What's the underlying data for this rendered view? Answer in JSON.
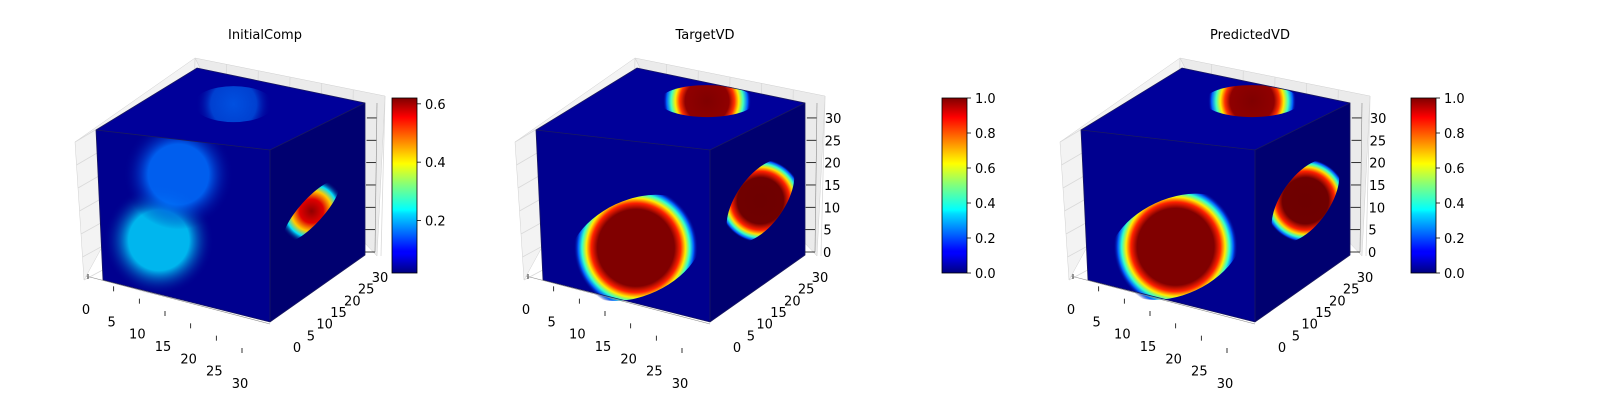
{
  "chart_data": [
    {
      "type": "heatmap",
      "title": "InitialComp",
      "colormap": "jet",
      "grid": true,
      "legend_placement": "right",
      "x_ticks": [
        "0",
        "5",
        "10",
        "15",
        "20",
        "25",
        "30"
      ],
      "y_ticks": [
        "0",
        "5",
        "10",
        "15",
        "20",
        "25",
        "30"
      ],
      "z_ticks": [],
      "z_range": [
        0,
        32
      ],
      "colorbar_range": [
        0.02,
        0.62
      ],
      "colorbar_ticks": [
        "0.2",
        "0.4",
        "0.6"
      ],
      "colorbar_tick_values": [
        0.2,
        0.4,
        0.6
      ],
      "front_face": [
        {
          "x": 11,
          "z": 11,
          "value": 0.22
        },
        {
          "x": 15,
          "z": 25,
          "value": 0.16
        }
      ],
      "top_face": [
        {
          "x": 14,
          "y": 20,
          "value": 0.15
        }
      ],
      "right_face": [
        {
          "y": 14,
          "z": 16,
          "value": 0.6
        }
      ]
    },
    {
      "type": "heatmap",
      "title": "TargetVD",
      "colormap": "jet",
      "grid": true,
      "legend_placement": "right",
      "x_ticks": [
        "0",
        "5",
        "10",
        "15",
        "20",
        "25",
        "30"
      ],
      "y_ticks": [
        "0",
        "5",
        "10",
        "15",
        "20",
        "25",
        "30"
      ],
      "z_ticks": [
        "0",
        "5",
        "10",
        "15",
        "20",
        "25",
        "30"
      ],
      "z_range": [
        0,
        32
      ],
      "colorbar_range": [
        0,
        1
      ],
      "colorbar_ticks": [
        "0.0",
        "0.2",
        "0.4",
        "0.6",
        "0.8",
        "1.0"
      ],
      "colorbar_tick_values": [
        0,
        0.2,
        0.4,
        0.6,
        0.8,
        1
      ],
      "front_face": [
        {
          "x": 18,
          "z": 11,
          "value": 1.0
        }
      ],
      "top_face": [
        {
          "x": 18,
          "y": 24,
          "value": 1.0
        }
      ],
      "right_face": [
        {
          "y": 17,
          "z": 17,
          "value": 1.0
        }
      ]
    },
    {
      "type": "heatmap",
      "title": "PredictedVD",
      "colormap": "jet",
      "grid": true,
      "legend_placement": "right",
      "x_ticks": [
        "0",
        "5",
        "10",
        "15",
        "20",
        "25",
        "30"
      ],
      "y_ticks": [
        "0",
        "5",
        "10",
        "15",
        "20",
        "25",
        "30"
      ],
      "z_ticks": [
        "0",
        "5",
        "10",
        "15",
        "20",
        "25",
        "30"
      ],
      "z_range": [
        0,
        32
      ],
      "colorbar_range": [
        0,
        1
      ],
      "colorbar_ticks": [
        "0.0",
        "0.2",
        "0.4",
        "0.6",
        "0.8",
        "1.0"
      ],
      "colorbar_tick_values": [
        0,
        0.2,
        0.4,
        0.6,
        0.8,
        1
      ],
      "front_face": [
        {
          "x": 17,
          "z": 11,
          "value": 1.0
        }
      ],
      "top_face": [
        {
          "x": 18,
          "y": 24,
          "value": 1.0
        }
      ],
      "right_face": [
        {
          "y": 17,
          "z": 17,
          "value": 1.0
        }
      ]
    }
  ]
}
